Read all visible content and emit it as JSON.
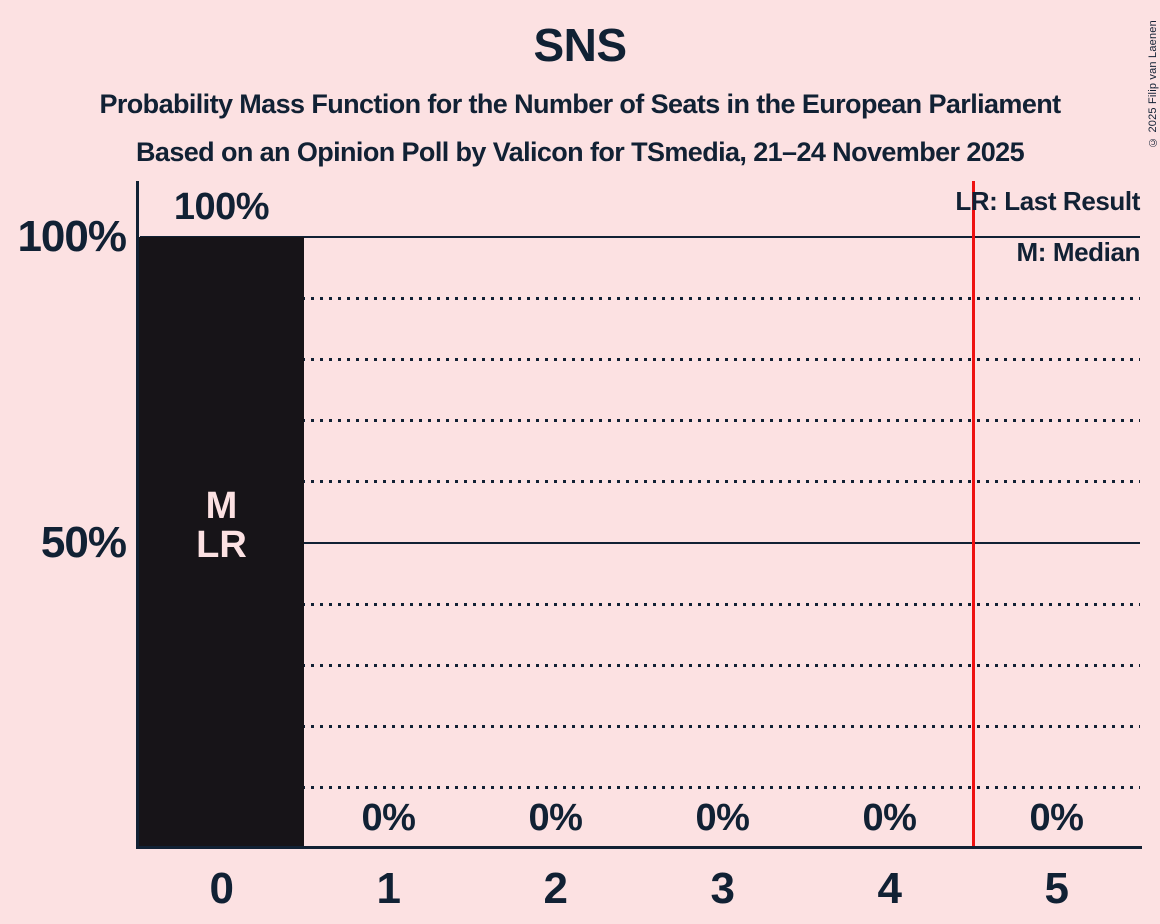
{
  "title": "SNS",
  "subtitle_line1": "Probability Mass Function for the Number of Seats in the European Parliament",
  "subtitle_line2": "Based on an Opinion Poll by Valicon for TSmedia, 21–24 November 2025",
  "legend": {
    "last_result": "LR: Last Result",
    "median": "M: Median"
  },
  "copyright": "© 2025 Filip van Laenen",
  "colors": {
    "background": "#fce1e2",
    "bar": "#171418",
    "text": "#112134",
    "last_result_line": "#ee1111"
  },
  "chart_data": {
    "type": "bar",
    "title": "SNS",
    "xlabel": "",
    "ylabel": "",
    "categories": [
      "0",
      "1",
      "2",
      "3",
      "4",
      "5"
    ],
    "values": [
      100,
      0,
      0,
      0,
      0,
      0
    ],
    "value_labels": [
      "100%",
      "0%",
      "0%",
      "0%",
      "0%",
      "0%"
    ],
    "bar_annotations": [
      [
        "M",
        "LR"
      ],
      [],
      [],
      [],
      [],
      []
    ],
    "y_ticks": [
      {
        "value": 100,
        "label": "100%"
      },
      {
        "value": 50,
        "label": "50%"
      }
    ],
    "ylim": [
      0,
      100
    ],
    "grid_solid": [
      100,
      50
    ],
    "grid_dotted": [
      90,
      80,
      70,
      60,
      40,
      30,
      20,
      10
    ],
    "last_result_marker_x": 4.5,
    "legend_position": "top-right"
  }
}
